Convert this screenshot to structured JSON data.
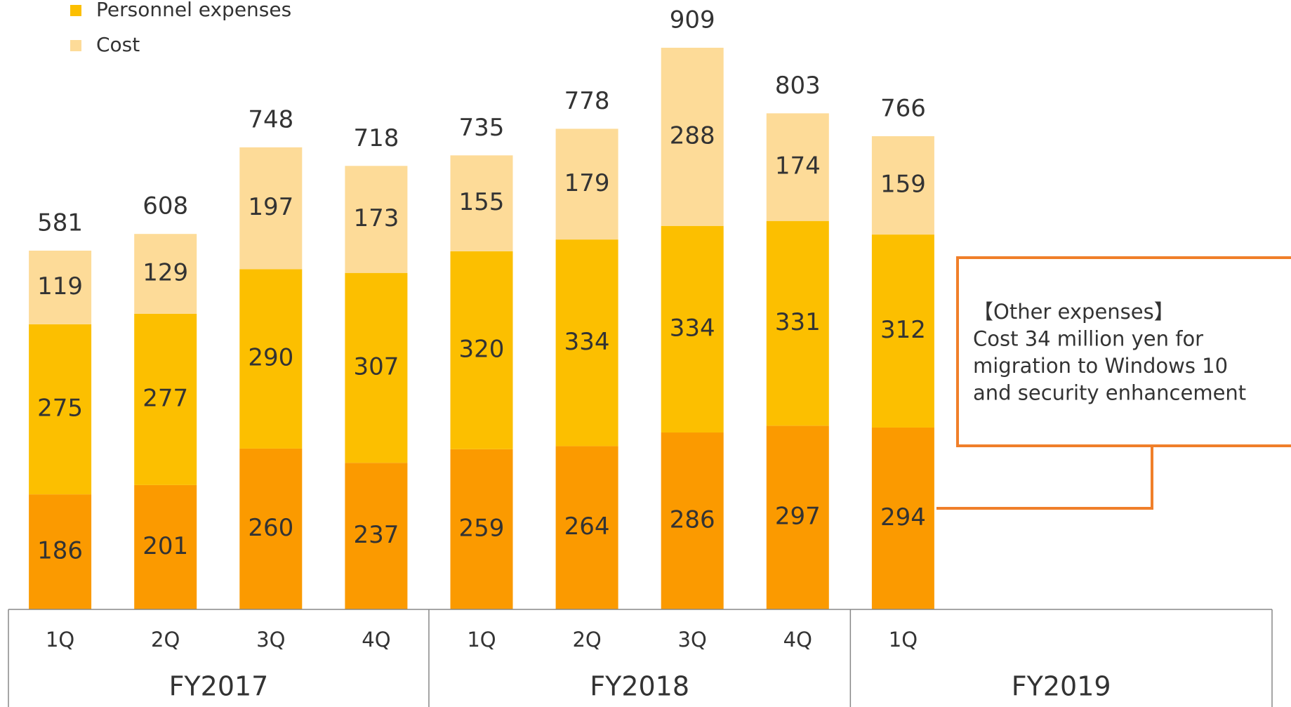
{
  "chart_data": {
    "type": "stacked-bar",
    "groups": [
      {
        "name": "FY2017",
        "categories": [
          "1Q",
          "2Q",
          "3Q",
          "4Q"
        ]
      },
      {
        "name": "FY2018",
        "categories": [
          "1Q",
          "2Q",
          "3Q",
          "4Q"
        ]
      },
      {
        "name": "FY2019",
        "categories": [
          "1Q"
        ]
      }
    ],
    "series": [
      {
        "color": "#fb9a00",
        "values": [
          186,
          201,
          260,
          237,
          259,
          264,
          286,
          297,
          294
        ]
      },
      {
        "name": "Personnel expenses",
        "color": "#fcbf00",
        "values": [
          275,
          277,
          290,
          307,
          320,
          334,
          334,
          331,
          312
        ]
      },
      {
        "name": "Cost",
        "color": "#fddb98",
        "values": [
          119,
          129,
          197,
          173,
          155,
          179,
          288,
          174,
          159
        ]
      }
    ],
    "totals": [
      581,
      608,
      748,
      718,
      735,
      778,
      909,
      803,
      766
    ],
    "annotation": [
      "【Other expenses】",
      "Cost 34 million yen for",
      "migration to Windows 10",
      "and security enhancement"
    ]
  }
}
